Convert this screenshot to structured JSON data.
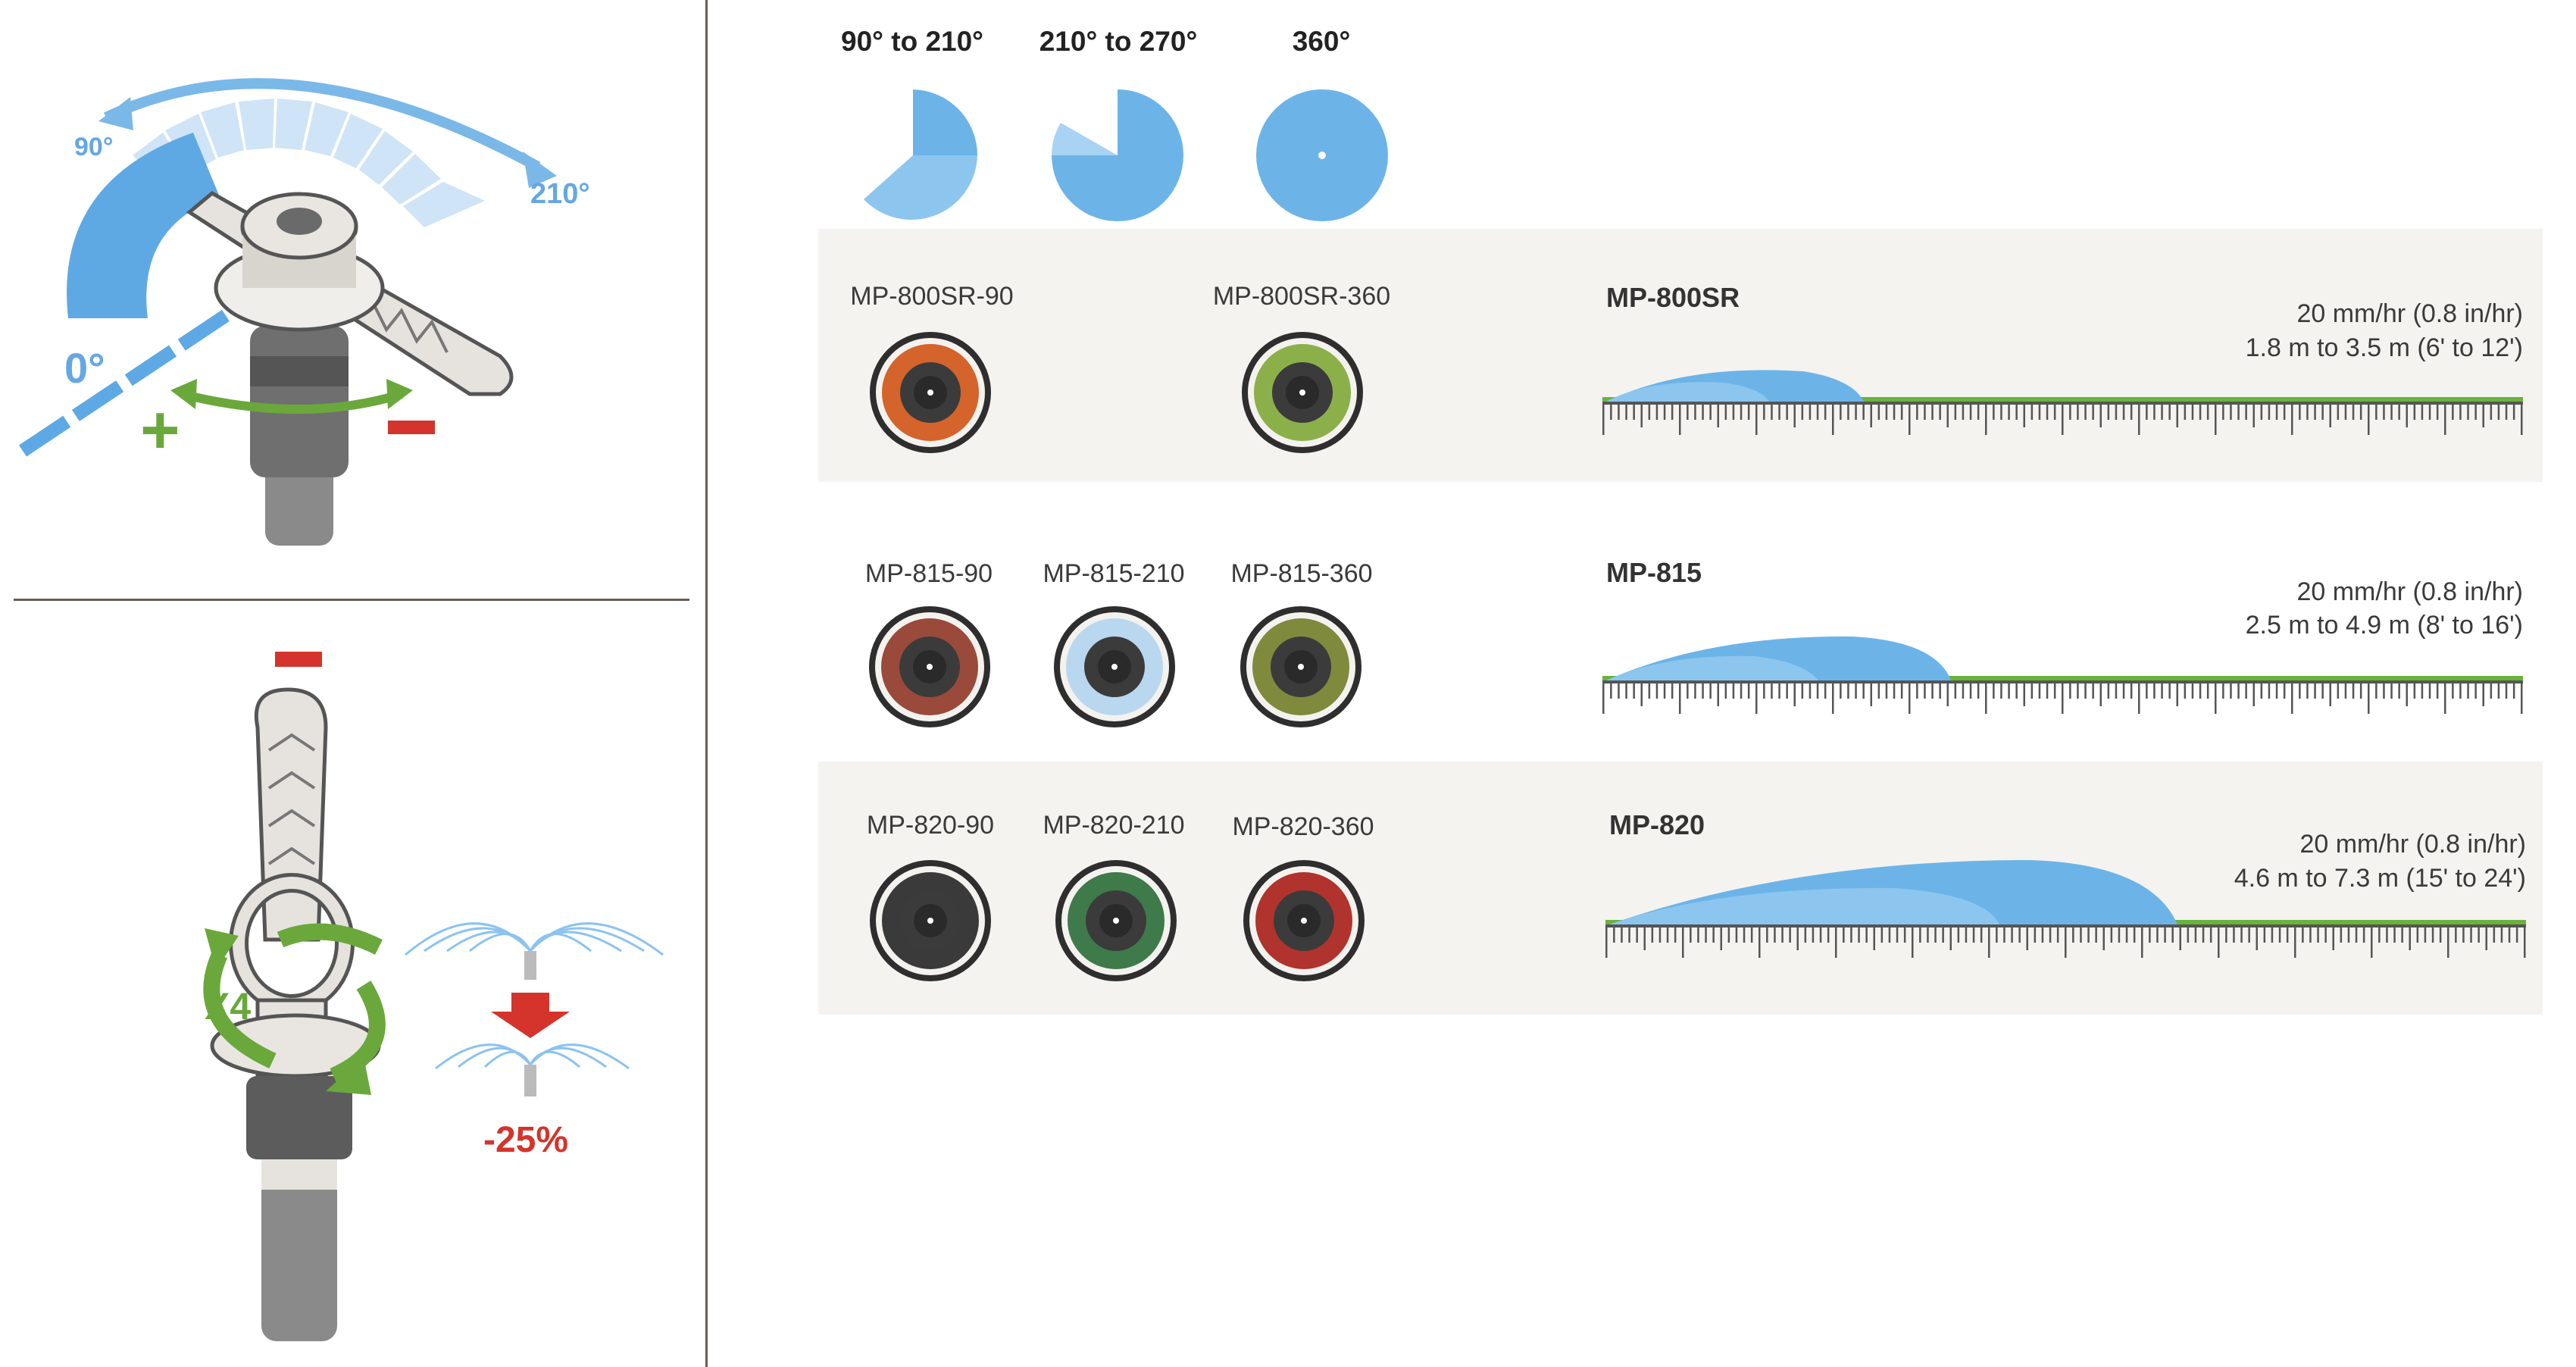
{
  "adjust_arc": {
    "angle_min": "0°",
    "angle_low": "90°",
    "angle_high": "210°",
    "plus": "+",
    "minus": "−"
  },
  "adjust_radius": {
    "minus": "−",
    "turns": "X4",
    "reduction": "-25%"
  },
  "arc_options": [
    {
      "label": "90° to 210°",
      "fill_fraction": 0.58
    },
    {
      "label": "210° to 270°",
      "fill_fraction": 0.75
    },
    {
      "label": "360°",
      "fill_fraction": 1.0
    }
  ],
  "series": [
    {
      "title": "MP-800SR",
      "rate": "20 mm/hr (0.8 in/hr)",
      "radius": "1.8 m to 3.5 m (6' to 12')",
      "models": [
        {
          "label": "MP-800SR-90",
          "color": "#d4642b"
        },
        {
          "label": "MP-800SR-360",
          "color": "#8bb04a"
        }
      ]
    },
    {
      "title": "MP-815",
      "rate": "20 mm/hr (0.8 in/hr)",
      "radius": "2.5 m to 4.9 m (8' to 16')",
      "models": [
        {
          "label": "MP-815-90",
          "color": "#9a4a3a"
        },
        {
          "label": "MP-815-210",
          "color": "#b9d8ef"
        },
        {
          "label": "MP-815-360",
          "color": "#7f8a3c"
        }
      ]
    },
    {
      "title": "MP-820",
      "rate": "20 mm/hr (0.8 in/hr)",
      "radius": "4.6 m to 7.3 m (15' to 24')",
      "models": [
        {
          "label": "MP-820-90",
          "color": "#3a3a3a"
        },
        {
          "label": "MP-820-210",
          "color": "#3f7a4a"
        },
        {
          "label": "MP-820-360",
          "color": "#b1332d"
        }
      ]
    }
  ],
  "colors": {
    "water": "#6cb4e8",
    "grass": "#69b33c",
    "accent_red": "#d4342b",
    "accent_green": "#6aa83c"
  }
}
